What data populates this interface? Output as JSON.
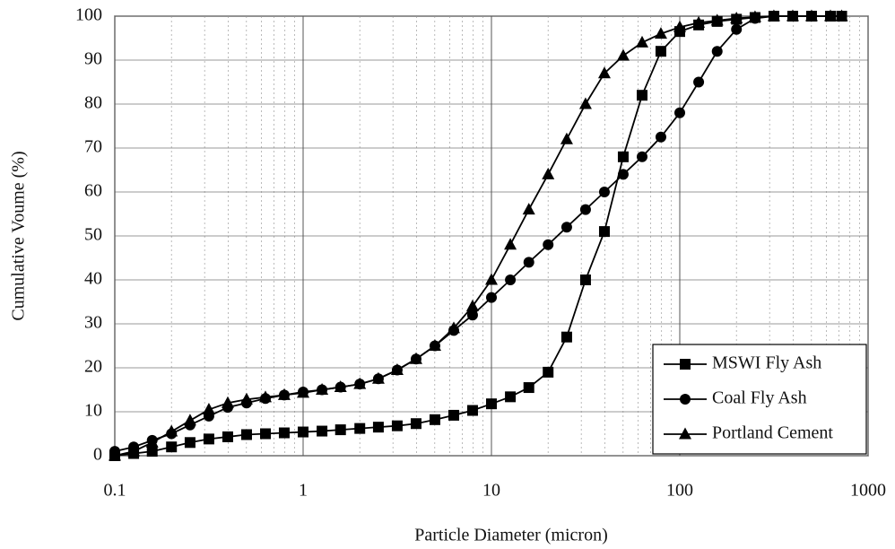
{
  "chart_data": {
    "type": "line",
    "x_label": "Particle Diameter (micron)",
    "y_label": "Cumulative Voume (%)",
    "log_x": true,
    "grid": true,
    "legend": "bottom-right",
    "x": [
      0.1,
      0.126,
      0.158,
      0.2,
      0.251,
      0.316,
      0.398,
      0.501,
      0.631,
      0.794,
      1,
      1.26,
      1.58,
      2,
      2.51,
      3.16,
      3.98,
      5.01,
      6.31,
      7.94,
      10,
      12.6,
      15.8,
      20,
      25.1,
      31.6,
      39.8,
      50.1,
      63.1,
      79.4,
      100,
      126,
      158,
      200,
      251,
      316,
      398,
      501,
      631,
      724
    ],
    "series": [
      {
        "name": "MSWI Fly Ash",
        "color": "#000000",
        "marker": "square",
        "values": [
          0,
          0.5,
          1,
          2,
          3,
          3.8,
          4.3,
          4.8,
          5,
          5.2,
          5.4,
          5.6,
          5.9,
          6.2,
          6.5,
          6.8,
          7.3,
          8.2,
          9.2,
          10.3,
          11.8,
          13.4,
          15.5,
          19,
          27,
          40,
          51,
          68,
          82,
          92,
          96.5,
          98,
          98.8,
          99.3,
          99.7,
          100,
          100,
          100,
          100,
          100
        ]
      },
      {
        "name": "Coal Fly Ash",
        "color": "#000000",
        "marker": "circle",
        "values": [
          1,
          2,
          3.5,
          5,
          7,
          9,
          11,
          12,
          13,
          13.8,
          14.5,
          15,
          15.6,
          16.3,
          17.5,
          19.5,
          22,
          25,
          28.5,
          32,
          36,
          40,
          44,
          48,
          52,
          56,
          60,
          64,
          68,
          72.5,
          78,
          85,
          92,
          97,
          99.5,
          100,
          100,
          100,
          100,
          100
        ]
      },
      {
        "name": "Portland Cement",
        "color": "#000000",
        "marker": "triangle",
        "values": [
          0,
          1,
          3,
          5.5,
          8,
          10.5,
          12,
          12.8,
          13.3,
          13.8,
          14.3,
          15,
          15.6,
          16.3,
          17.5,
          19.5,
          22,
          25,
          29,
          34,
          40,
          48,
          56,
          64,
          72,
          80,
          87,
          91,
          94,
          96,
          97.5,
          98.5,
          99,
          99.5,
          99.8,
          100,
          100,
          100,
          100,
          100
        ]
      }
    ],
    "xlim": [
      0.1,
      1000
    ],
    "xticks": [
      0.1,
      1,
      10,
      100,
      1000
    ],
    "ylim": [
      0,
      100
    ],
    "yticks": [
      0,
      10,
      20,
      30,
      40,
      50,
      60,
      70,
      80,
      90,
      100
    ]
  }
}
